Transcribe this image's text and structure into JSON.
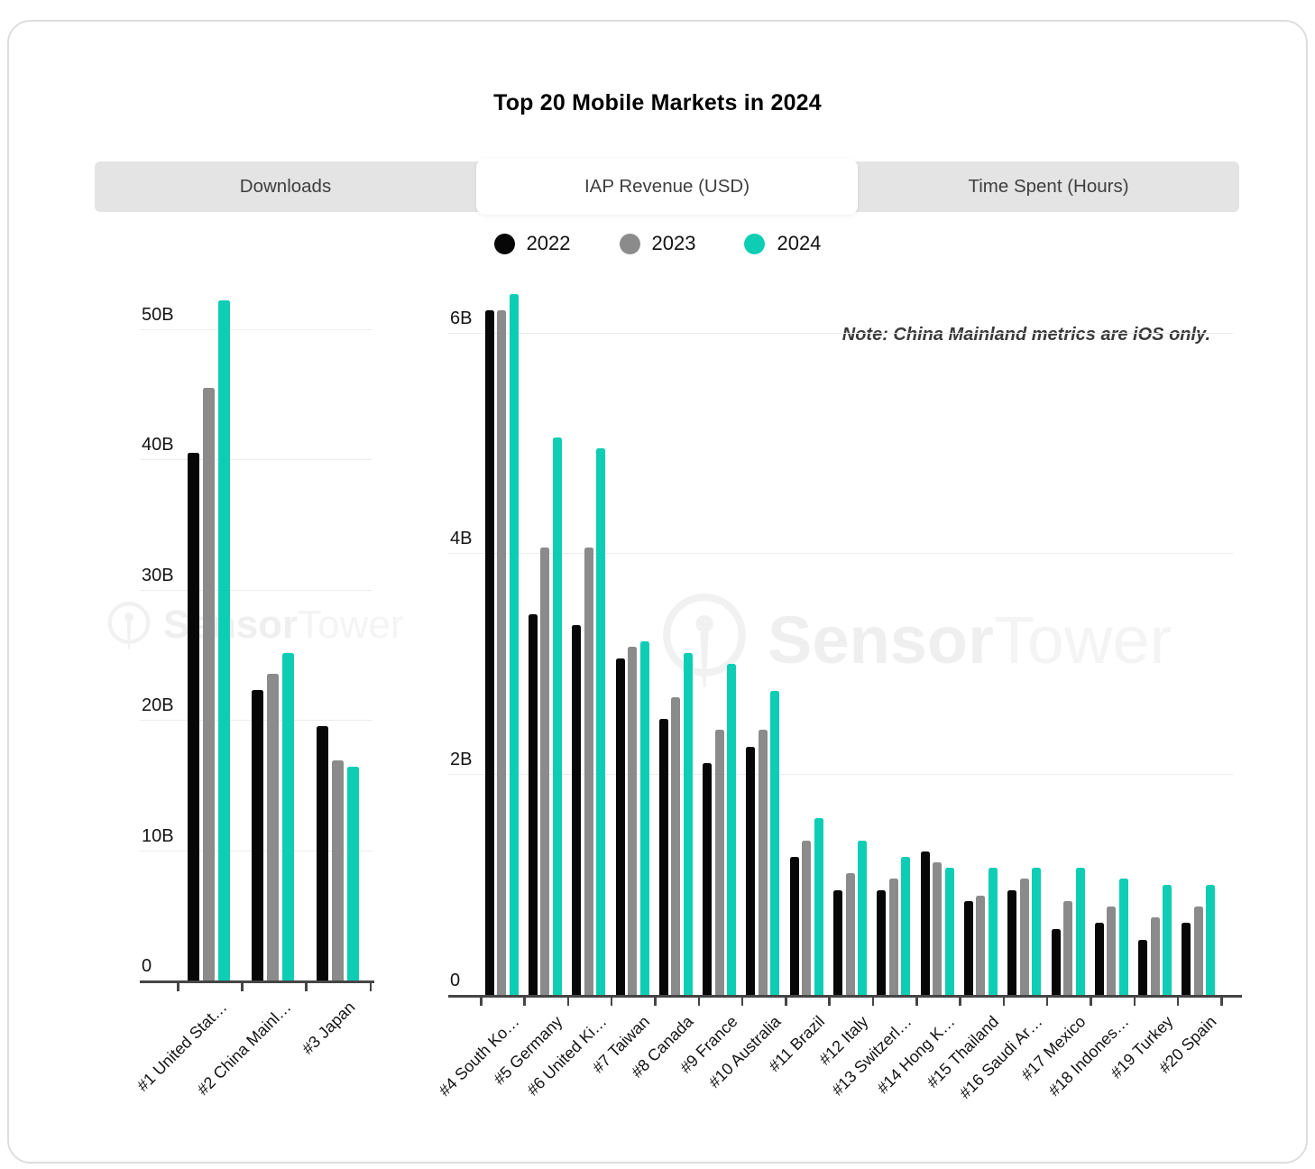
{
  "title": "Top 20 Mobile Markets in 2024",
  "tabs": [
    {
      "label": "Downloads",
      "active": false
    },
    {
      "label": "IAP Revenue (USD)",
      "active": true
    },
    {
      "label": "Time Spent (Hours)",
      "active": false
    }
  ],
  "legend": [
    {
      "label": "2022",
      "color": "#070707"
    },
    {
      "label": "2023",
      "color": "#8b8b8b"
    },
    {
      "label": "2024",
      "color": "#0dceb5"
    }
  ],
  "note": "Note: China Mainland metrics are iOS only.",
  "watermark": {
    "brand_bold": "Sensor",
    "brand_light": "Tower"
  },
  "colors": {
    "accent_teal": "#0dceb5",
    "bar_gray": "#8b8b8b",
    "bar_black": "#070707"
  },
  "chart_data": [
    {
      "type": "bar",
      "panel": "top3-markets",
      "title": "",
      "xlabel": "",
      "ylabel": "IAP Revenue (USD)",
      "unit": "billions USD",
      "grid": true,
      "legend_position": "top",
      "x_label_rotation": 45,
      "ylim": [
        0,
        52.8
      ],
      "yticks": [
        {
          "value": 0,
          "label": "0"
        },
        {
          "value": 10,
          "label": "10B"
        },
        {
          "value": 20,
          "label": "20B"
        },
        {
          "value": 30,
          "label": "30B"
        },
        {
          "value": 40,
          "label": "40B"
        },
        {
          "value": 50,
          "label": "50B"
        }
      ],
      "categories": [
        "#1 United Stat…",
        "#2 China Mainl…",
        "#3 Japan"
      ],
      "series": [
        {
          "name": "2022",
          "color": "#070707",
          "values": [
            40.5,
            22.3,
            19.5
          ]
        },
        {
          "name": "2023",
          "color": "#8b8b8b",
          "values": [
            45.5,
            23.5,
            16.9
          ]
        },
        {
          "name": "2024",
          "color": "#0dceb5",
          "values": [
            52.2,
            25.1,
            16.4
          ]
        }
      ]
    },
    {
      "type": "bar",
      "panel": "markets-4-to-20",
      "title": "",
      "xlabel": "",
      "ylabel": "IAP Revenue (USD)",
      "unit": "billions USD",
      "grid": true,
      "legend_position": "top",
      "x_label_rotation": 45,
      "ylim": [
        0,
        6.38
      ],
      "yticks": [
        {
          "value": 0,
          "label": "0"
        },
        {
          "value": 2,
          "label": "2B"
        },
        {
          "value": 4,
          "label": "4B"
        },
        {
          "value": 6,
          "label": "6B"
        }
      ],
      "categories": [
        "#4 South Ko…",
        "#5 Germany",
        "#6 United Ki…",
        "#7 Taiwan",
        "#8 Canada",
        "#9 France",
        "#10 Australia",
        "#11 Brazil",
        "#12 Italy",
        "#13 Switzerl…",
        "#14 Hong K…",
        "#15 Thailand",
        "#16 Saudi Ar…",
        "#17 Mexico",
        "#18 Indones…",
        "#19 Turkey",
        "#20 Spain"
      ],
      "series": [
        {
          "name": "2022",
          "color": "#070707",
          "values": [
            6.2,
            3.45,
            3.35,
            3.05,
            2.5,
            2.1,
            2.25,
            1.25,
            0.95,
            0.95,
            1.3,
            0.85,
            0.95,
            0.6,
            0.65,
            0.5,
            0.65
          ]
        },
        {
          "name": "2023",
          "color": "#8b8b8b",
          "values": [
            6.2,
            4.05,
            4.05,
            3.15,
            2.7,
            2.4,
            2.4,
            1.4,
            1.1,
            1.05,
            1.2,
            0.9,
            1.05,
            0.85,
            0.8,
            0.7,
            0.8
          ]
        },
        {
          "name": "2024",
          "color": "#0dceb5",
          "values": [
            6.35,
            5.05,
            4.95,
            3.2,
            3.1,
            3.0,
            2.75,
            1.6,
            1.4,
            1.25,
            1.15,
            1.15,
            1.15,
            1.15,
            1.05,
            1.0,
            1.0
          ]
        }
      ]
    }
  ]
}
